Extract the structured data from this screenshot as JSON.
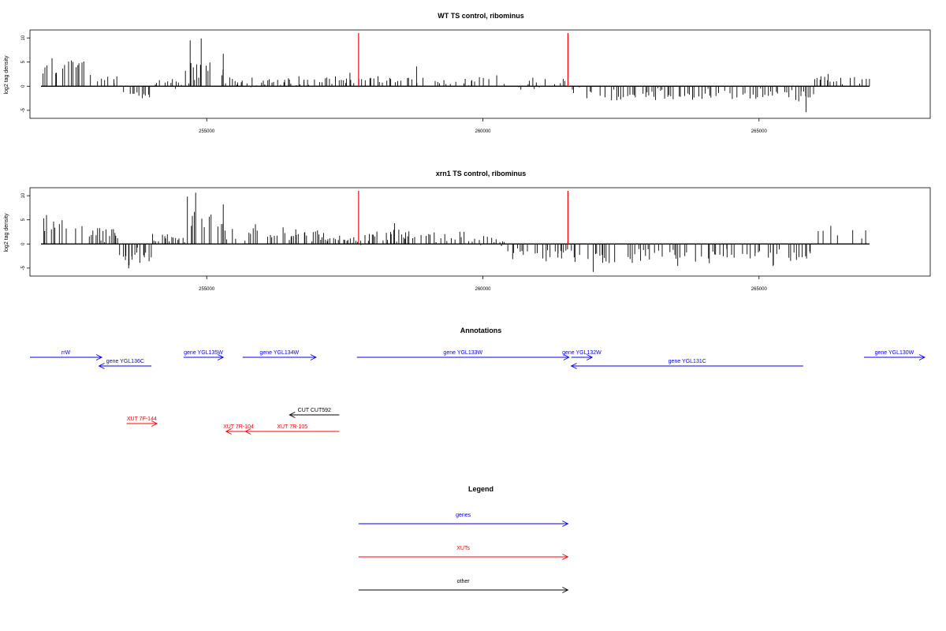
{
  "chart_data": [
    {
      "type": "bar",
      "title": "WT TS control, ribominus",
      "ylabel": "log2 tag density",
      "xlabel": "",
      "xlim": [
        251800,
        268100
      ],
      "ylim": [
        -6,
        11
      ],
      "x_ticks": [
        255000,
        260000,
        265000
      ],
      "y_ticks": [
        -5,
        0,
        5,
        10
      ],
      "red_lines_x": [
        257750,
        261540
      ],
      "profile": {
        "start": 252000,
        "end": 267000,
        "step": 40,
        "segments": [
          [
            252000,
            252850,
            3.5,
            0.2
          ],
          [
            252850,
            253400,
            1.2,
            0.3
          ],
          [
            253400,
            254000,
            -1.5,
            0.5
          ],
          [
            254000,
            254600,
            0.4,
            0.6
          ],
          [
            254600,
            255300,
            3.5,
            0.2
          ],
          [
            255300,
            257400,
            0.8,
            0.6
          ],
          [
            257400,
            258800,
            1.3,
            0.4
          ],
          [
            258800,
            260200,
            1.0,
            0.4
          ],
          [
            260200,
            261600,
            0.5,
            0.3
          ],
          [
            261600,
            262200,
            -1.2,
            0.4
          ],
          [
            262200,
            266000,
            -1.8,
            0.45
          ],
          [
            266000,
            267000,
            1.4,
            0.4
          ]
        ],
        "peaks": [
          [
            254700,
            9.5
          ],
          [
            254900,
            9.9
          ],
          [
            255300,
            6.7
          ],
          [
            265850,
            -5.4
          ],
          [
            252500,
            5.1
          ],
          [
            258800,
            4.1
          ]
        ]
      }
    },
    {
      "type": "bar",
      "title": "xrn1 TS control, ribominus",
      "ylabel": "log2 tag density",
      "xlabel": "",
      "xlim": [
        251800,
        268100
      ],
      "ylim": [
        -6,
        11
      ],
      "x_ticks": [
        255000,
        260000,
        265000
      ],
      "y_ticks": [
        -5,
        0,
        5,
        10
      ],
      "red_lines_x": [
        257750,
        261540
      ],
      "profile": {
        "start": 252000,
        "end": 267000,
        "step": 30,
        "segments": [
          [
            252000,
            252850,
            3.5,
            0.2
          ],
          [
            252850,
            253400,
            2.0,
            0.6
          ],
          [
            253400,
            254000,
            -2.5,
            0.3
          ],
          [
            254000,
            254600,
            1.2,
            0.7
          ],
          [
            254600,
            255300,
            4.0,
            0.2
          ],
          [
            255300,
            257000,
            2.0,
            0.3
          ],
          [
            257000,
            257800,
            0.8,
            0.5
          ],
          [
            257800,
            259800,
            1.6,
            0.4
          ],
          [
            259800,
            260400,
            0.6,
            0.4
          ],
          [
            260400,
            261600,
            -2.0,
            0.3
          ],
          [
            261600,
            266000,
            -2.6,
            0.2
          ],
          [
            266000,
            267000,
            2.2,
            0.2
          ]
        ],
        "peaks": [
          [
            254800,
            10.6
          ],
          [
            254650,
            9.8
          ],
          [
            255300,
            8.2
          ],
          [
            262000,
            -5.8
          ],
          [
            252100,
            6.0
          ],
          [
            258400,
            4.3
          ]
        ]
      }
    }
  ],
  "annotations": {
    "title": "Annotations",
    "genes": [
      {
        "label": "rrW",
        "from": 251800,
        "to": 253100,
        "row": 0
      },
      {
        "label": "gene YGL136C",
        "from": 254000,
        "to": 253050,
        "row": 1
      },
      {
        "label": "gene YGL135W",
        "from": 254580,
        "to": 255300,
        "row": 0
      },
      {
        "label": "gene YGL134W",
        "from": 255650,
        "to": 256980,
        "row": 0
      },
      {
        "label": "gene YGL133W",
        "from": 257720,
        "to": 261560,
        "row": 0
      },
      {
        "label": "gene YGL132W",
        "from": 261600,
        "to": 261980,
        "row": 0
      },
      {
        "label": "gene YGL131C",
        "from": 265800,
        "to": 261600,
        "row": 1
      },
      {
        "label": "gene YGL130W",
        "from": 266900,
        "to": 268000,
        "row": 0
      }
    ],
    "xuts": [
      {
        "label": "XUT 7F-144",
        "from": 253550,
        "to": 254100,
        "row": 0
      },
      {
        "label": "XUT 7R-104",
        "from": 255800,
        "to": 255350,
        "row": 1
      },
      {
        "label": "XUT 7R-105",
        "from": 257400,
        "to": 255700,
        "row": 1
      }
    ],
    "other": [
      {
        "label": "CUT CUT592",
        "from": 257400,
        "to": 256500,
        "row": 0
      }
    ]
  },
  "legend": {
    "title": "Legend",
    "items": [
      {
        "label": "genes",
        "color": "#0000ff"
      },
      {
        "label": "XUTs",
        "color": "#ff0000"
      },
      {
        "label": "other",
        "color": "#000000"
      }
    ]
  },
  "colors": {
    "gene": "#0000ff",
    "xut": "#ff0000",
    "other": "#000000",
    "marker": "#ff0000"
  }
}
